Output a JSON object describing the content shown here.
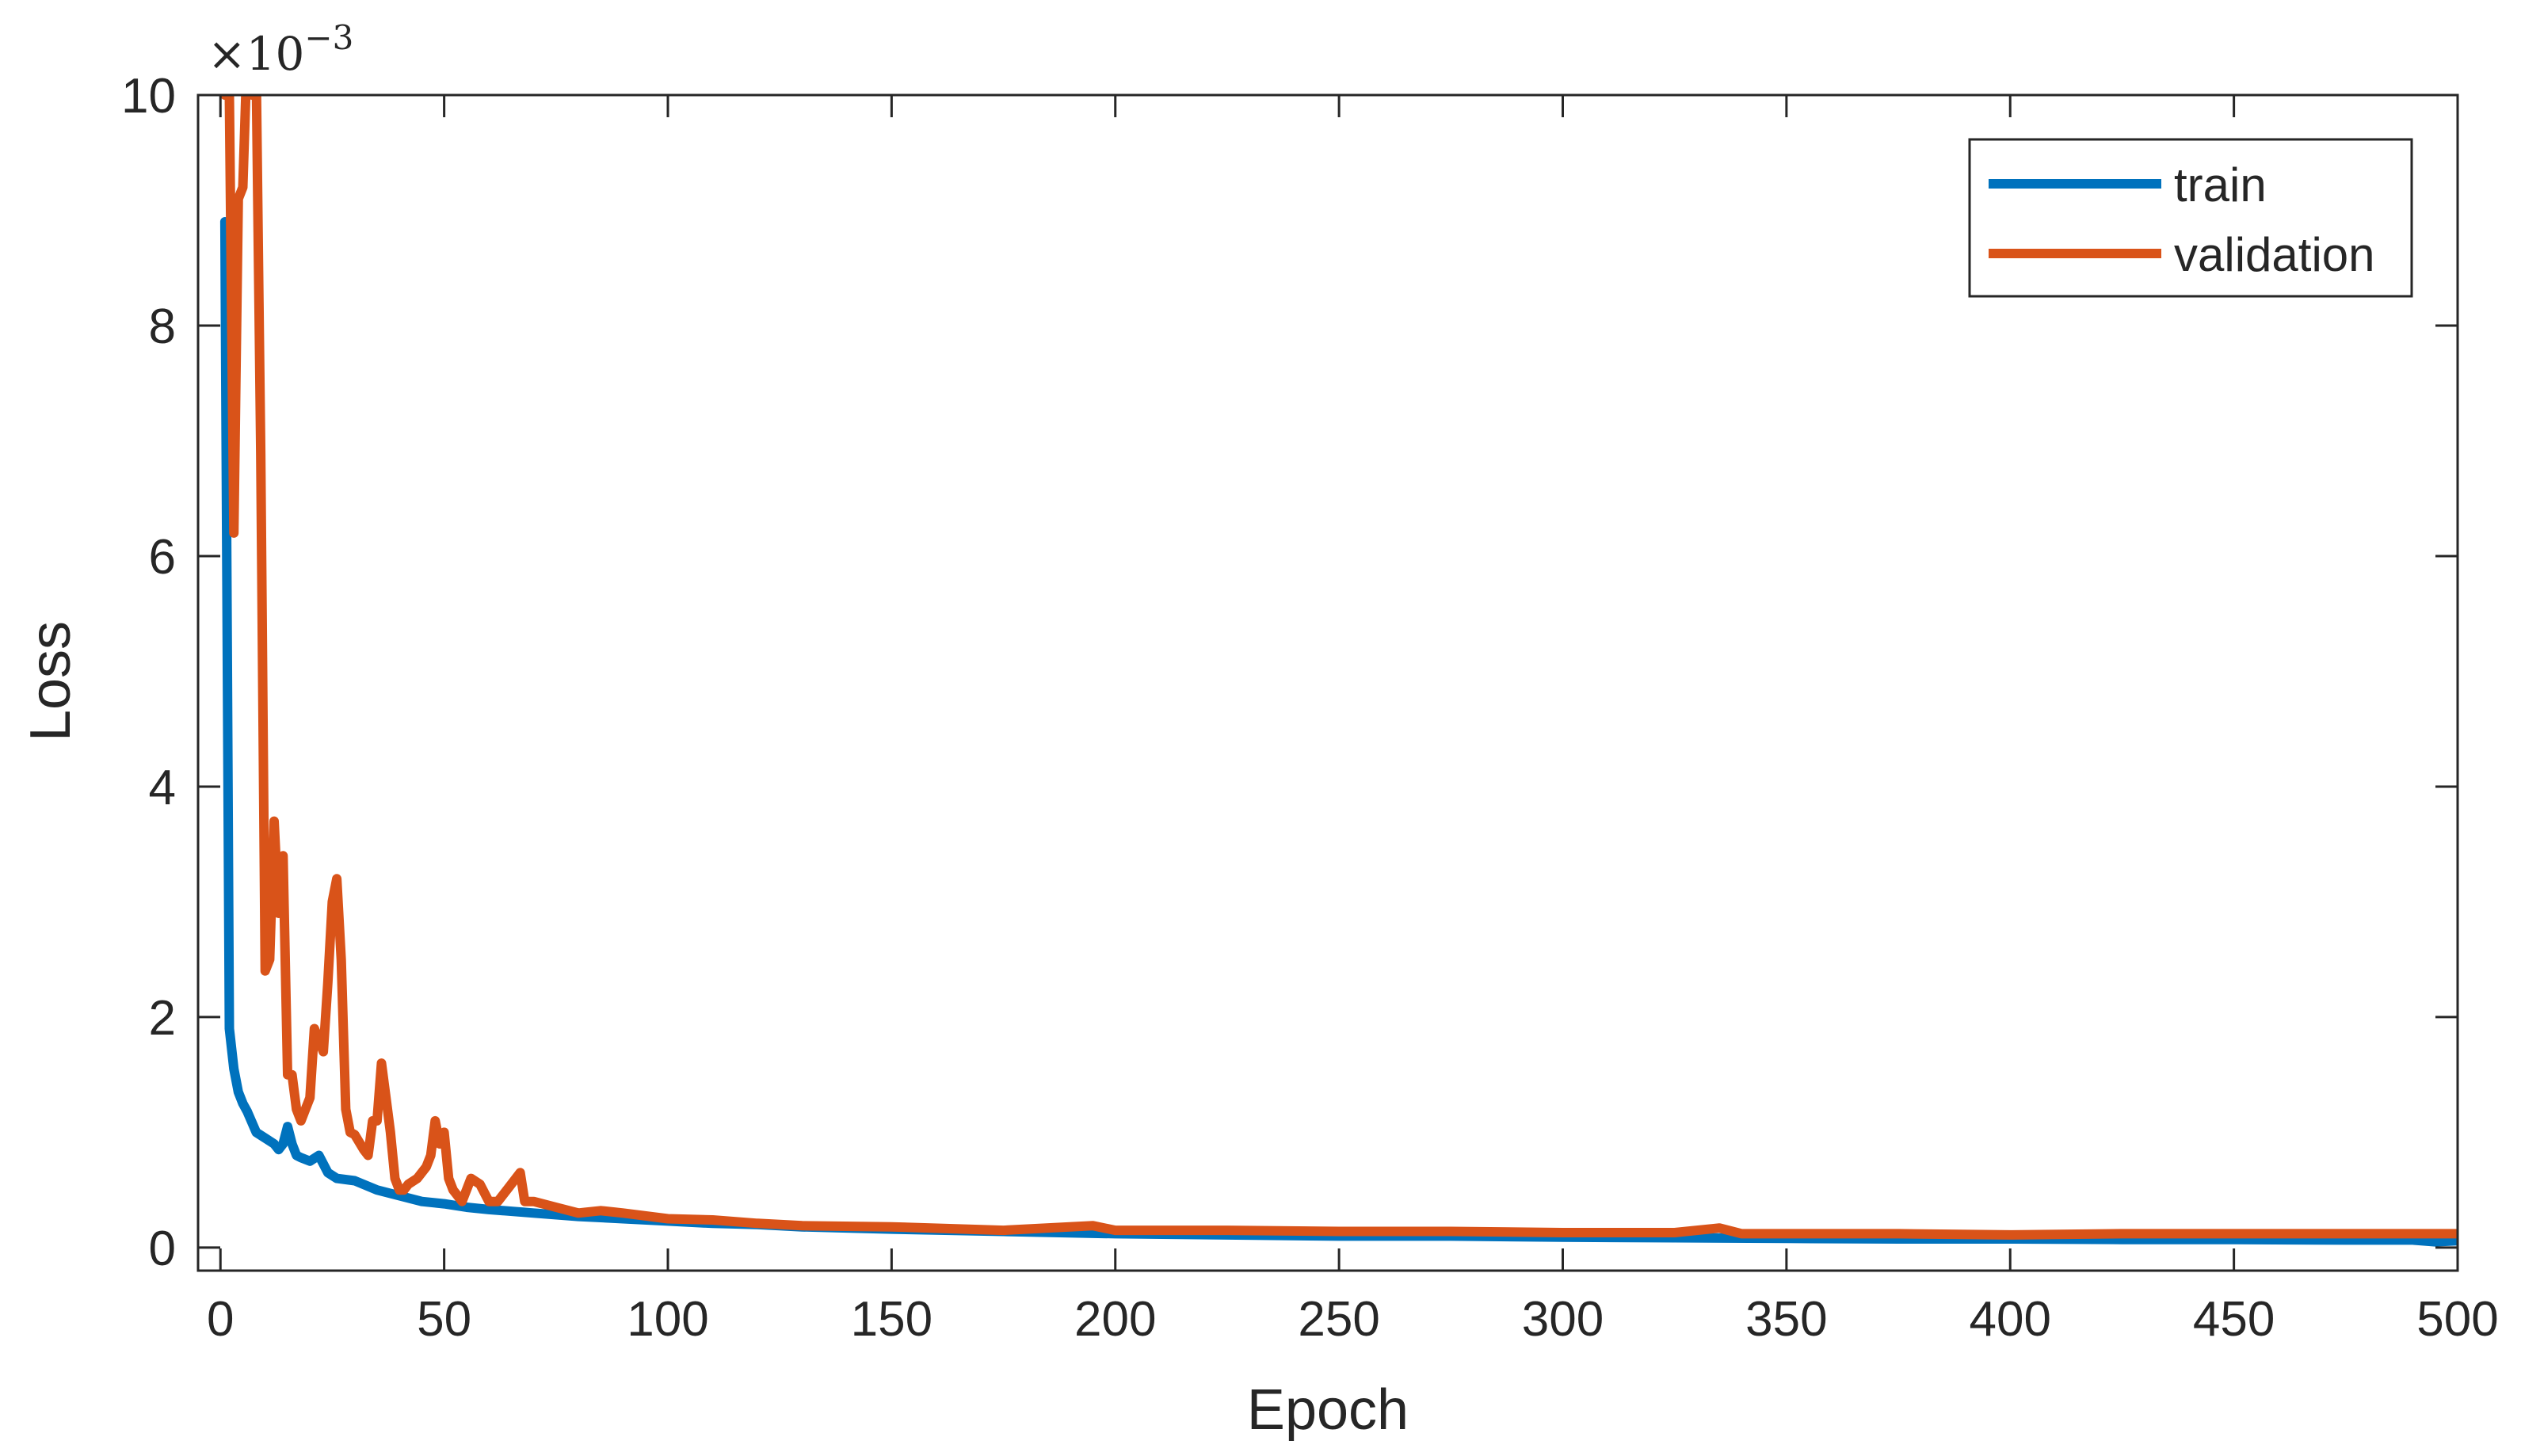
{
  "chart_data": {
    "type": "line",
    "xlabel": "Epoch",
    "ylabel": "Loss",
    "xlim": [
      -5,
      500
    ],
    "ylim": [
      -0.0002,
      0.01
    ],
    "y_multiplier_base": "×10",
    "y_multiplier_exponent": "−3",
    "x_ticks": [
      0,
      50,
      100,
      150,
      200,
      250,
      300,
      350,
      400,
      450,
      500
    ],
    "x_tick_labels": [
      "0",
      "50",
      "100",
      "150",
      "200",
      "250",
      "300",
      "350",
      "400",
      "450",
      "500"
    ],
    "y_ticks": [
      0,
      0.002,
      0.004,
      0.006,
      0.008,
      0.01
    ],
    "y_tick_labels": [
      "0",
      "2",
      "4",
      "6",
      "8",
      "10"
    ],
    "grid": false,
    "legend": {
      "position": "top-right",
      "entries": [
        "train",
        "validation"
      ]
    },
    "series": [
      {
        "name": "train",
        "color": "#0072BD",
        "x": [
          1,
          2,
          3,
          4,
          5,
          6,
          8,
          10,
          12,
          13,
          14,
          15,
          16,
          17,
          18,
          20,
          22,
          24,
          26,
          30,
          35,
          40,
          45,
          50,
          55,
          60,
          70,
          80,
          90,
          100,
          110,
          120,
          130,
          150,
          175,
          200,
          225,
          250,
          275,
          300,
          325,
          350,
          375,
          400,
          425,
          450,
          475,
          490,
          495,
          500
        ],
        "y": [
          0.0089,
          0.0019,
          0.00155,
          0.00135,
          0.00125,
          0.00118,
          0.001,
          0.00095,
          0.0009,
          0.00085,
          0.0009,
          0.00105,
          0.0009,
          0.0008,
          0.00078,
          0.00075,
          0.0008,
          0.00065,
          0.0006,
          0.00058,
          0.0005,
          0.00045,
          0.0004,
          0.00038,
          0.00035,
          0.00033,
          0.0003,
          0.00027,
          0.00025,
          0.00023,
          0.00021,
          0.0002,
          0.00018,
          0.00016,
          0.00014,
          0.00012,
          0.00011,
          0.0001,
          0.0001,
          9e-05,
          8.5e-05,
          8e-05,
          7.5e-05,
          7.5e-05,
          7e-05,
          7e-05,
          6.5e-05,
          6.5e-05,
          5e-05,
          6e-05
        ]
      },
      {
        "name": "validation",
        "color": "#D95319",
        "x": [
          1,
          2,
          3,
          4,
          5,
          6,
          7,
          8,
          9,
          10,
          11,
          12,
          13,
          14,
          15,
          16,
          17,
          18,
          19,
          20,
          21,
          22,
          23,
          24,
          25,
          26,
          27,
          28,
          29,
          30,
          32,
          33,
          34,
          35,
          36,
          37,
          38,
          39,
          40,
          41,
          42,
          44,
          46,
          47,
          48,
          49,
          50,
          51,
          52,
          54,
          56,
          58,
          60,
          62,
          64,
          66,
          67,
          68,
          70,
          75,
          80,
          85,
          90,
          100,
          110,
          120,
          130,
          150,
          175,
          195,
          200,
          225,
          250,
          275,
          300,
          325,
          335,
          340,
          375,
          400,
          425,
          450,
          475,
          500
        ],
        "y": [
          0.01,
          0.01,
          0.0062,
          0.0091,
          0.0092,
          0.0104,
          0.01,
          0.0102,
          0.0069,
          0.0024,
          0.0025,
          0.0037,
          0.0029,
          0.0034,
          0.0015,
          0.0015,
          0.0012,
          0.0011,
          0.0012,
          0.0013,
          0.0019,
          0.0018,
          0.0017,
          0.0023,
          0.003,
          0.0032,
          0.0025,
          0.0012,
          0.001,
          0.00098,
          0.00085,
          0.0008,
          0.0011,
          0.0011,
          0.0016,
          0.0013,
          0.001,
          0.0006,
          0.0005,
          0.0005,
          0.00055,
          0.0006,
          0.0007,
          0.0008,
          0.0011,
          0.0009,
          0.001,
          0.0006,
          0.0005,
          0.0004,
          0.0006,
          0.00055,
          0.0004,
          0.0004,
          0.0005,
          0.0006,
          0.00065,
          0.0004,
          0.0004,
          0.00035,
          0.0003,
          0.00032,
          0.0003,
          0.00025,
          0.00024,
          0.00021,
          0.00019,
          0.00018,
          0.00015,
          0.00019,
          0.00015,
          0.00015,
          0.00014,
          0.00014,
          0.00013,
          0.00013,
          0.00017,
          0.00012,
          0.00012,
          0.00011,
          0.00012,
          0.00012,
          0.00012,
          0.00012
        ]
      }
    ]
  }
}
